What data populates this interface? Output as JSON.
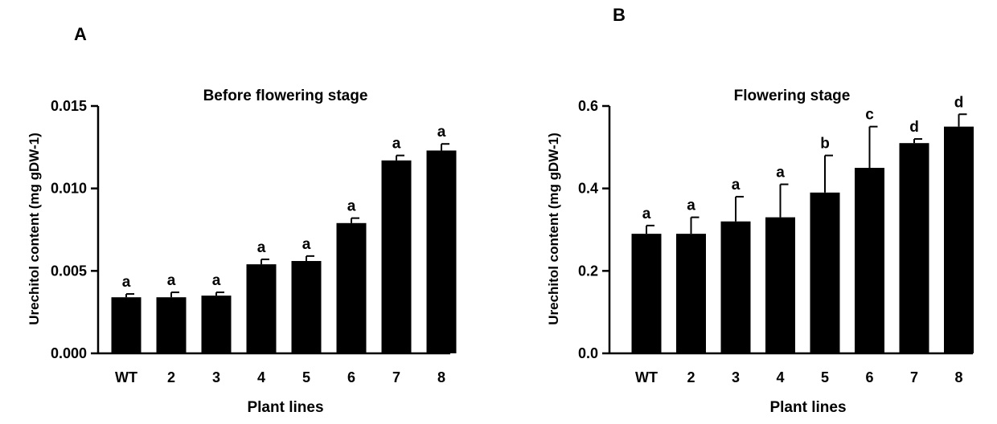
{
  "panels": [
    {
      "letter": "A"
    },
    {
      "letter": "B"
    }
  ],
  "chart_data": [
    {
      "type": "bar",
      "title": "Before flowering stage",
      "xlabel": "Plant lines",
      "ylabel": "Urechitol content (mg gDW-1)",
      "categories": [
        "WT",
        "2",
        "3",
        "4",
        "5",
        "6",
        "7",
        "8"
      ],
      "values": [
        0.0034,
        0.0034,
        0.0035,
        0.0054,
        0.0056,
        0.0079,
        0.0117,
        0.0123
      ],
      "errors": [
        0.0002,
        0.0003,
        0.0002,
        0.0003,
        0.0003,
        0.0003,
        0.0003,
        0.0004
      ],
      "significance": [
        "a",
        "a",
        "a",
        "a",
        "a",
        "a",
        "a",
        "a"
      ],
      "ylim": [
        0,
        0.015
      ],
      "yticks": [
        0.0,
        0.005,
        0.01,
        0.015
      ],
      "ytick_labels": [
        "0.000",
        "0.005",
        "0.010",
        "0.015"
      ],
      "bar_color": "#000000"
    },
    {
      "type": "bar",
      "title": "Flowering stage",
      "xlabel": "Plant lines",
      "ylabel": "Urechitol content (mg gDW-1)",
      "categories": [
        "WT",
        "2",
        "3",
        "4",
        "5",
        "6",
        "7",
        "8"
      ],
      "values": [
        0.29,
        0.29,
        0.32,
        0.33,
        0.39,
        0.45,
        0.51,
        0.55
      ],
      "errors": [
        0.02,
        0.04,
        0.06,
        0.08,
        0.09,
        0.1,
        0.01,
        0.03
      ],
      "significance": [
        "a",
        "a",
        "a",
        "a",
        "b",
        "c",
        "d",
        "d"
      ],
      "ylim": [
        0,
        0.6
      ],
      "yticks": [
        0.0,
        0.2,
        0.4,
        0.6
      ],
      "ytick_labels": [
        "0.0",
        "0.2",
        "0.4",
        "0.6"
      ],
      "bar_color": "#000000"
    }
  ]
}
